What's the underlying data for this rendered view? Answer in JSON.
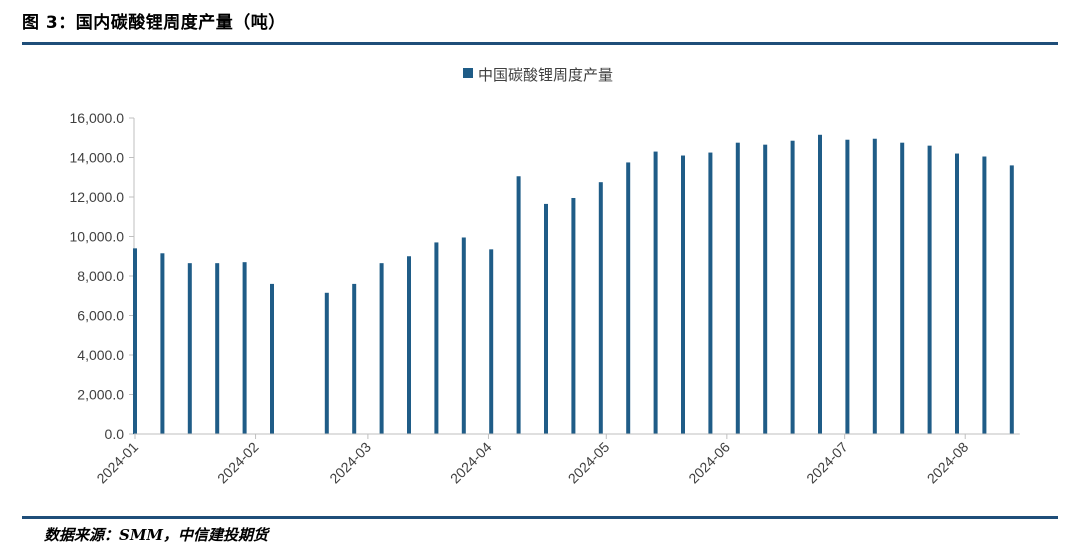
{
  "page": {
    "title": "图 3：国内碳酸锂周度产量（吨）",
    "source": "数据来源：SMM，中信建投期货"
  },
  "chart_data": {
    "type": "bar",
    "series": [
      {
        "name": "中国碳酸锂周度产量",
        "color": "#1f5c87",
        "points": [
          {
            "week": 0,
            "value": 9400
          },
          {
            "week": 1,
            "value": 9150
          },
          {
            "week": 2,
            "value": 8650
          },
          {
            "week": 3,
            "value": 8650
          },
          {
            "week": 4,
            "value": 8700
          },
          {
            "week": 5,
            "value": 7600
          },
          {
            "week": 7,
            "value": 7150
          },
          {
            "week": 8,
            "value": 7600
          },
          {
            "week": 9,
            "value": 8650
          },
          {
            "week": 10,
            "value": 9000
          },
          {
            "week": 11,
            "value": 9700
          },
          {
            "week": 12,
            "value": 9950
          },
          {
            "week": 13,
            "value": 9350
          },
          {
            "week": 14,
            "value": 13050
          },
          {
            "week": 15,
            "value": 11650
          },
          {
            "week": 16,
            "value": 11950
          },
          {
            "week": 17,
            "value": 12750
          },
          {
            "week": 18,
            "value": 13750
          },
          {
            "week": 19,
            "value": 14300
          },
          {
            "week": 20,
            "value": 14100
          },
          {
            "week": 21,
            "value": 14250
          },
          {
            "week": 22,
            "value": 14750
          },
          {
            "week": 23,
            "value": 14650
          },
          {
            "week": 24,
            "value": 14850
          },
          {
            "week": 25,
            "value": 15150
          },
          {
            "week": 26,
            "value": 14900
          },
          {
            "week": 27,
            "value": 14950
          },
          {
            "week": 28,
            "value": 14750
          },
          {
            "week": 29,
            "value": 14600
          },
          {
            "week": 30,
            "value": 14200
          },
          {
            "week": 31,
            "value": 14050
          },
          {
            "week": 32,
            "value": 13600
          }
        ]
      }
    ],
    "y_ticks": [
      "0.0",
      "2,000.0",
      "4,000.0",
      "6,000.0",
      "8,000.0",
      "10,000.0",
      "12,000.0",
      "14,000.0",
      "16,000.0"
    ],
    "ylim": [
      0,
      16000
    ],
    "x_ticks": [
      {
        "label": "2024-01",
        "week": 0
      },
      {
        "label": "2024-02",
        "week": 4.4
      },
      {
        "label": "2024-03",
        "week": 8.5
      },
      {
        "label": "2024-04",
        "week": 12.9
      },
      {
        "label": "2024-05",
        "week": 17.2
      },
      {
        "label": "2024-06",
        "week": 21.6
      },
      {
        "label": "2024-07",
        "week": 25.9
      },
      {
        "label": "2024-08",
        "week": 30.3
      }
    ],
    "legend_position": "top-center",
    "grid": false
  }
}
